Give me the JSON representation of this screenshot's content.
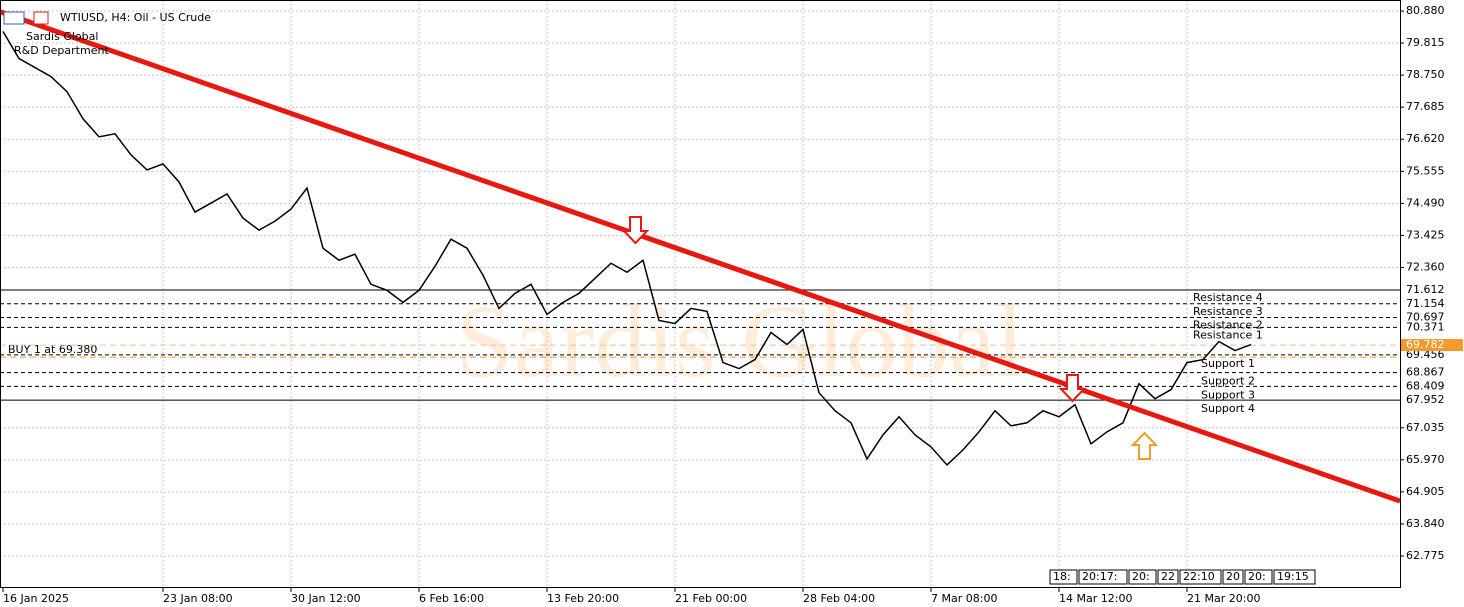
{
  "chart_data": {
    "type": "line",
    "title": "WTIUSD, H4:  Oil - US Crude",
    "subtitle": [
      "Sardis Global",
      "R&D Department"
    ],
    "watermark": "Sardis Global",
    "color": "#000000",
    "categories": [
      "16 Jan 2025",
      null,
      null,
      null,
      null,
      null,
      null,
      null,
      null,
      null,
      "23 Jan 08:00",
      null,
      null,
      null,
      null,
      null,
      null,
      null,
      "30 Jan 12:00",
      null,
      null,
      null,
      null,
      null,
      null,
      null,
      "6 Feb 16:00",
      null,
      null,
      null,
      null,
      null,
      null,
      null,
      "13 Feb 20:00",
      null,
      null,
      null,
      null,
      null,
      null,
      null,
      "21 Feb 00:00",
      null,
      null,
      null,
      null,
      null,
      null,
      null,
      "28 Feb 04:00",
      null,
      null,
      null,
      null,
      null,
      null,
      null,
      "7 Mar 08:00",
      null,
      null,
      null,
      null,
      null,
      null,
      null,
      "14 Mar 12:00",
      null,
      null,
      null,
      null,
      null,
      null,
      null,
      "21 Mar 20:00",
      null,
      null,
      null,
      null
    ],
    "values": [
      80.2,
      79.3,
      79.0,
      78.7,
      78.2,
      77.3,
      76.7,
      76.8,
      76.1,
      75.6,
      75.8,
      75.2,
      74.2,
      74.5,
      74.8,
      74.0,
      73.6,
      73.9,
      74.3,
      75.0,
      73.0,
      72.6,
      72.8,
      71.8,
      71.6,
      71.2,
      71.6,
      72.4,
      73.3,
      73.0,
      72.1,
      71.0,
      71.5,
      71.8,
      70.8,
      71.2,
      71.5,
      72.0,
      72.5,
      72.2,
      72.6,
      70.6,
      70.5,
      71.0,
      70.9,
      69.2,
      69.0,
      69.3,
      70.2,
      69.8,
      70.3,
      68.2,
      67.6,
      67.2,
      66.0,
      66.8,
      67.4,
      66.8,
      66.4,
      65.8,
      66.3,
      66.9,
      67.6,
      67.1,
      67.2,
      67.6,
      67.4,
      67.8,
      66.5,
      66.9,
      67.2,
      68.5,
      68.0,
      68.3,
      69.2,
      69.3,
      69.9,
      69.6,
      69.8
    ],
    "ylim": [
      61.712,
      81.245
    ],
    "yticks": [
      {
        "value": 80.88,
        "label": "80.880"
      },
      79.815,
      {
        "value": 78.75,
        "label": "78.750"
      },
      77.685,
      {
        "value": 76.62,
        "label": "76.620"
      },
      75.555,
      {
        "value": 74.49,
        "label": "74.490"
      },
      73.425,
      {
        "value": 72.36,
        "label": "72.360"
      },
      67.035,
      {
        "value": 65.97,
        "label": "65.970"
      },
      64.905,
      {
        "value": 63.84,
        "label": "63.840"
      },
      62.775
    ],
    "grid": true,
    "levels": [
      {
        "label": "Resistance 4",
        "value": 71.612
      },
      {
        "label": "Resistance 3",
        "value": 71.154
      },
      {
        "label": "Resistance 2",
        "value": 70.697
      },
      {
        "label": "Resistance 1",
        "value": 70.371
      },
      {
        "label": "Support 1",
        "value": 69.456
      },
      {
        "label": "Support 2",
        "value": 68.867
      },
      {
        "label": "Support 3",
        "value": 68.409
      },
      {
        "label": "Support 4",
        "value": 67.952
      }
    ],
    "current_price": 69.782,
    "buy": {
      "label": "BUY 1 at 69.380",
      "value": 69.38
    },
    "trendline": {
      "values": [
        80.82,
        66.33
      ],
      "color": "#e8170f"
    },
    "tabs": [
      "18:",
      "20:17:",
      "20:",
      "22",
      "22:10",
      "20",
      "20:",
      "19:15"
    ]
  }
}
